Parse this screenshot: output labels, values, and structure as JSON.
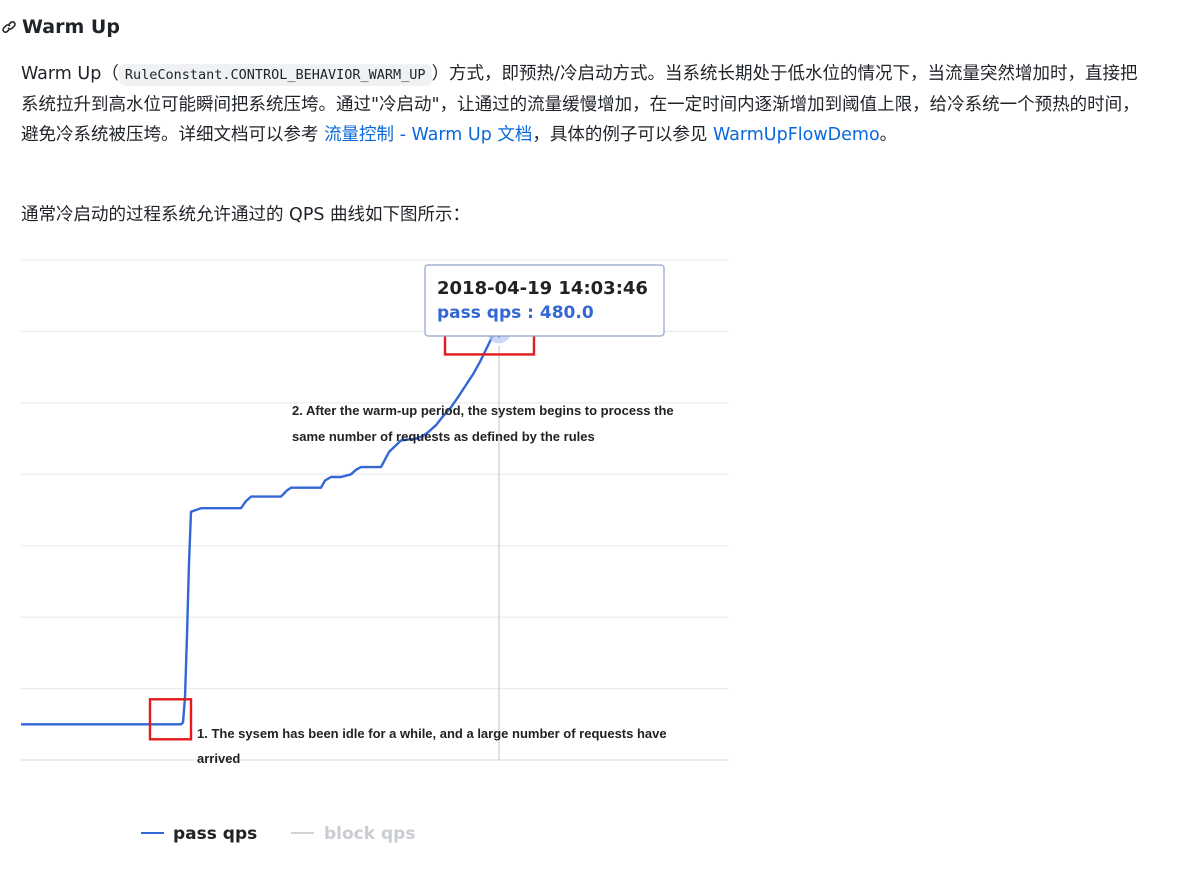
{
  "heading": {
    "title": "Warm Up",
    "icon": "link-icon"
  },
  "paragraph1": {
    "lead": "Warm Up（",
    "code": "RuleConstant.CONTROL_BEHAVIOR_WARM_UP",
    "text_after_code": "）方式，即预热/冷启动方式。当系统长期处于低水位的情况下，当流量突然增加时，直接把系统拉升到高水位可能瞬间把系统压垮。通过\"冷启动\"，让通过的流量缓慢增加，在一定时间内逐渐增加到阈值上限，给冷系统一个预热的时间，避免冷系统被压垮。详细文档可以参考 ",
    "link1": "流量控制 - Warm Up 文档",
    "text_between_links": "，具体的例子可以参见 ",
    "link2": "WarmUpFlowDemo",
    "text_end": "。"
  },
  "paragraph2": {
    "text": "通常冷启动的过程系统允许通过的 QPS 曲线如下图所示："
  },
  "chart_data": {
    "type": "line",
    "series": [
      {
        "name": "pass qps",
        "color": "#3367d6",
        "points": [
          [
            0,
            40
          ],
          [
            150,
            40
          ],
          [
            160,
            40
          ],
          [
            162,
            42
          ],
          [
            164,
            70
          ],
          [
            166,
            140
          ],
          [
            168,
            220
          ],
          [
            170,
            278
          ],
          [
            180,
            282
          ],
          [
            220,
            282
          ],
          [
            225,
            290
          ],
          [
            230,
            295
          ],
          [
            260,
            295
          ],
          [
            266,
            302
          ],
          [
            270,
            305
          ],
          [
            300,
            305
          ],
          [
            304,
            313
          ],
          [
            310,
            317
          ],
          [
            320,
            317
          ],
          [
            330,
            320
          ],
          [
            335,
            325
          ],
          [
            340,
            328
          ],
          [
            360,
            328
          ],
          [
            368,
            345
          ],
          [
            380,
            358
          ],
          [
            395,
            360
          ],
          [
            402,
            363
          ],
          [
            408,
            368
          ],
          [
            415,
            375
          ],
          [
            422,
            385
          ],
          [
            430,
            395
          ],
          [
            438,
            408
          ],
          [
            445,
            420
          ],
          [
            452,
            432
          ],
          [
            459,
            446
          ],
          [
            466,
            462
          ],
          [
            472,
            476
          ],
          [
            478,
            480
          ],
          [
            482,
            479
          ],
          [
            486,
            477
          ],
          [
            490,
            480
          ],
          [
            500,
            480
          ],
          [
            520,
            479
          ],
          [
            528,
            478
          ],
          [
            534,
            480
          ],
          [
            560,
            480
          ]
        ]
      },
      {
        "name": "block qps",
        "color": "#d0d3d8",
        "points": []
      }
    ],
    "ylim": [
      0,
      560
    ],
    "grid": true,
    "legend": [
      "pass qps",
      "block qps"
    ],
    "legend_placement": "bottom",
    "tooltip": {
      "date": "2018-04-19 14:03:46",
      "label": "pass qps : 480.0"
    },
    "annotations": [
      {
        "id": "idle",
        "lines": [
          "1. The sysem has been idle for a while, and a large number of requests have",
          "arrived"
        ],
        "marker_x": 150,
        "marker_y": 40
      },
      {
        "id": "warmup",
        "lines": [
          "2. After the warm-up period, the system begins to process the",
          "same number of requests as defined by the rules"
        ],
        "marker_x": 478,
        "marker_y": 480
      }
    ],
    "highlight_color": "#e41a1c"
  }
}
